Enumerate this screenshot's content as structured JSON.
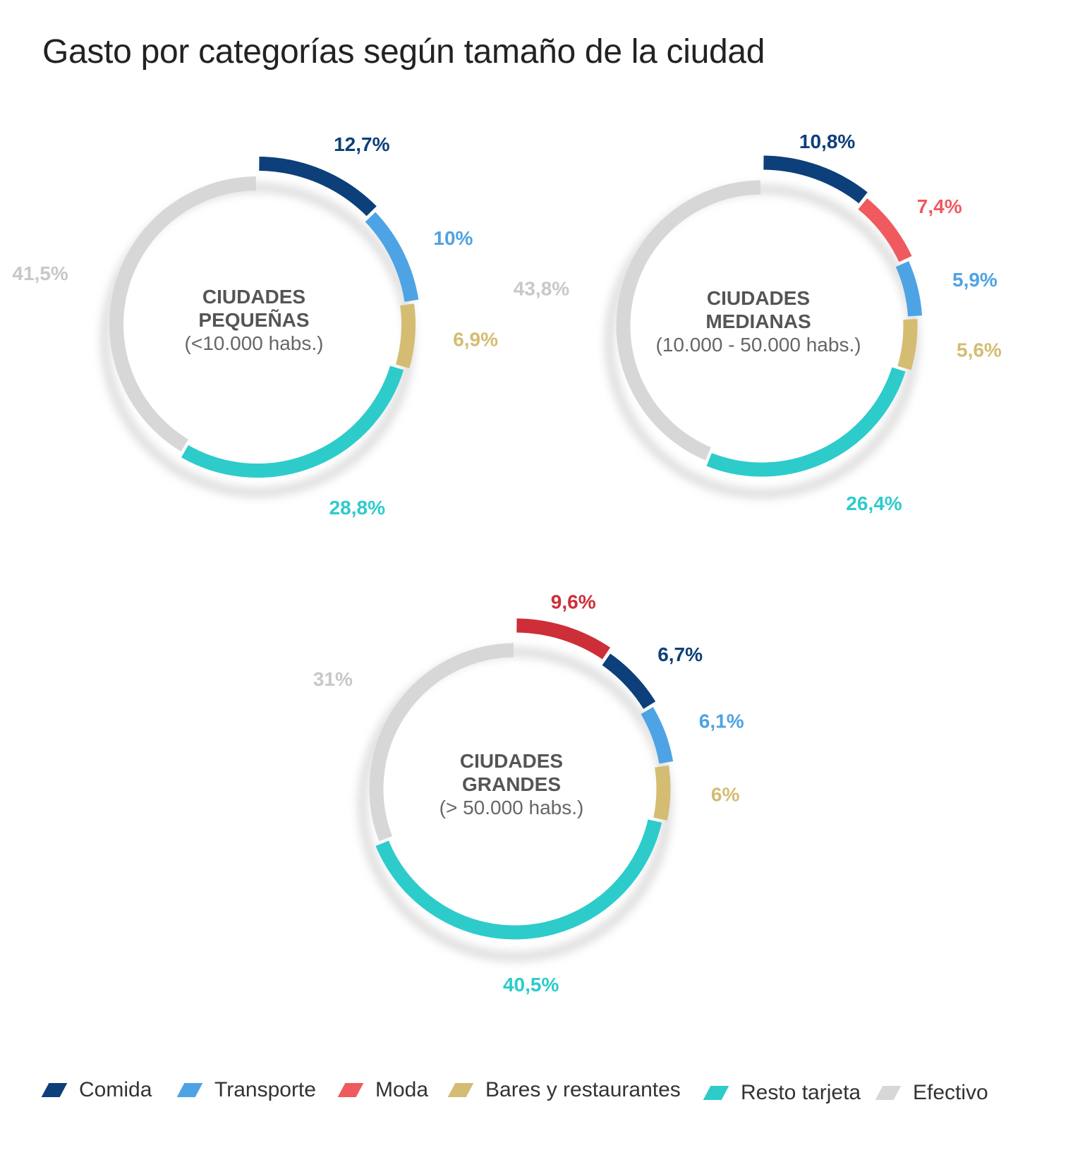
{
  "title": "Gasto por categorías según tamaño de la ciudad",
  "colors": {
    "comida": "#0d3f7a",
    "transporte": "#4ea3e4",
    "moda_1": "#ef5a5e",
    "moda_2": "#cd2e38",
    "bares": "#d4bc72",
    "resto": "#2ecbcb",
    "efectivo": "#d7d7d7",
    "efectivo_label": "#c8c8c8"
  },
  "legend": [
    {
      "label": "Comida",
      "color": "#0d3f7a"
    },
    {
      "label": "Transporte",
      "color": "#4ea3e4"
    },
    {
      "label": "Moda",
      "color": "#ef5a5e"
    },
    {
      "label": "Bares y restaurantes",
      "color": "#d4bc72"
    },
    {
      "label": "Resto tarjeta",
      "color": "#2ecbcb"
    },
    {
      "label": "Efectivo",
      "color": "#d7d7d7"
    }
  ],
  "chart_data": [
    {
      "type": "pie",
      "title_lines": [
        "CIUDADES",
        "PEQUEÑAS"
      ],
      "subtitle": "(<10.000 habs.)",
      "slices": [
        {
          "category": "Comida",
          "value": 12.7,
          "label": "12,7%",
          "color": "#0d3f7a"
        },
        {
          "category": "Transporte",
          "value": 10,
          "label": "10%",
          "color": "#4ea3e4"
        },
        {
          "category": "Bares y restaurantes",
          "value": 6.9,
          "label": "6,9%",
          "color": "#d4bc72"
        },
        {
          "category": "Resto tarjeta",
          "value": 28.8,
          "label": "28,8%",
          "color": "#2ecbcb"
        },
        {
          "category": "Efectivo",
          "value": 41.5,
          "label": "41,5%",
          "color": "#d7d7d7"
        }
      ]
    },
    {
      "type": "pie",
      "title_lines": [
        "CIUDADES",
        "MEDIANAS"
      ],
      "subtitle": "(10.000 - 50.000 habs.)",
      "slices": [
        {
          "category": "Comida",
          "value": 10.8,
          "label": "10,8%",
          "color": "#0d3f7a"
        },
        {
          "category": "Moda",
          "value": 7.4,
          "label": "7,4%",
          "color": "#ef5a5e"
        },
        {
          "category": "Transporte",
          "value": 5.9,
          "label": "5,9%",
          "color": "#4ea3e4"
        },
        {
          "category": "Bares y restaurantes",
          "value": 5.6,
          "label": "5,6%",
          "color": "#d4bc72"
        },
        {
          "category": "Resto tarjeta",
          "value": 26.4,
          "label": "26,4%",
          "color": "#2ecbcb"
        },
        {
          "category": "Efectivo",
          "value": 43.8,
          "label": "43,8%",
          "color": "#d7d7d7"
        }
      ]
    },
    {
      "type": "pie",
      "title_lines": [
        "CIUDADES",
        "GRANDES"
      ],
      "subtitle": "(> 50.000 habs.)",
      "slices": [
        {
          "category": "Moda",
          "value": 9.6,
          "label": "9,6%",
          "color": "#cd2e38"
        },
        {
          "category": "Comida",
          "value": 6.7,
          "label": "6,7%",
          "color": "#0d3f7a"
        },
        {
          "category": "Transporte",
          "value": 6.1,
          "label": "6,1%",
          "color": "#4ea3e4"
        },
        {
          "category": "Bares y restaurantes",
          "value": 6,
          "label": "6%",
          "color": "#d4bc72"
        },
        {
          "category": "Resto tarjeta",
          "value": 40.5,
          "label": "40,5%",
          "color": "#2ecbcb"
        },
        {
          "category": "Efectivo",
          "value": 31,
          "label": "31%",
          "color": "#d7d7d7"
        }
      ]
    }
  ]
}
